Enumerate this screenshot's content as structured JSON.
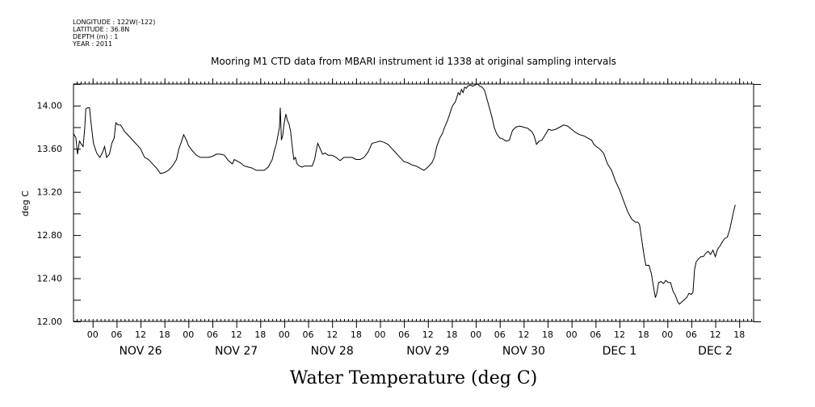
{
  "header": {
    "longitude": "LONGITUDE : 122W(-122)",
    "latitude": "LATITUDE : 36.8N",
    "depth": "DEPTH (m) : 1",
    "year": "YEAR : 2011"
  },
  "chart_data": {
    "type": "line",
    "title": "Mooring M1 CTD data from MBARI instrument id 1338 at original sampling intervals",
    "xlabel": "Water Temperature (deg C)",
    "ylabel": "deg C",
    "ylim": [
      12.0,
      14.2
    ],
    "xlim_hours": [
      -4.8,
      165.6
    ],
    "grid": false,
    "hour_ticks": [
      {
        "label": "00",
        "h": 0
      },
      {
        "label": "06",
        "h": 6
      },
      {
        "label": "12",
        "h": 12
      },
      {
        "label": "18",
        "h": 18
      },
      {
        "label": "00",
        "h": 24
      },
      {
        "label": "06",
        "h": 30
      },
      {
        "label": "12",
        "h": 36
      },
      {
        "label": "18",
        "h": 42
      },
      {
        "label": "00",
        "h": 48
      },
      {
        "label": "06",
        "h": 54
      },
      {
        "label": "12",
        "h": 60
      },
      {
        "label": "18",
        "h": 66
      },
      {
        "label": "00",
        "h": 72
      },
      {
        "label": "06",
        "h": 78
      },
      {
        "label": "12",
        "h": 84
      },
      {
        "label": "18",
        "h": 90
      },
      {
        "label": "00",
        "h": 96
      },
      {
        "label": "06",
        "h": 102
      },
      {
        "label": "12",
        "h": 108
      },
      {
        "label": "18",
        "h": 114
      },
      {
        "label": "00",
        "h": 120
      },
      {
        "label": "06",
        "h": 126
      },
      {
        "label": "12",
        "h": 132
      },
      {
        "label": "18",
        "h": 138
      },
      {
        "label": "00",
        "h": 144
      },
      {
        "label": "06",
        "h": 150
      },
      {
        "label": "12",
        "h": 156
      },
      {
        "label": "18",
        "h": 162
      }
    ],
    "day_labels": [
      {
        "label": "NOV 26",
        "h": 12
      },
      {
        "label": "NOV 27",
        "h": 36
      },
      {
        "label": "NOV 28",
        "h": 60
      },
      {
        "label": "NOV 29",
        "h": 84
      },
      {
        "label": "NOV 30",
        "h": 108
      },
      {
        "label": "DEC  1",
        "h": 132
      },
      {
        "label": "DEC  2",
        "h": 156
      }
    ],
    "y_ticks": [
      {
        "label": "12.00",
        "v": 12.0
      },
      {
        "label": "12.40",
        "v": 12.4
      },
      {
        "label": "12.80",
        "v": 12.8
      },
      {
        "label": "13.20",
        "v": 13.2
      },
      {
        "label": "13.60",
        "v": 13.6
      },
      {
        "label": "14.00",
        "v": 14.0
      }
    ],
    "series": [
      {
        "color": "#000000",
        "points": [
          [
            -4.8,
            13.74
          ],
          [
            -4.2,
            13.7
          ],
          [
            -3.8,
            13.55
          ],
          [
            -3.3,
            13.67
          ],
          [
            -2.8,
            13.64
          ],
          [
            -2.4,
            13.62
          ],
          [
            -2.0,
            13.78
          ],
          [
            -1.7,
            13.97
          ],
          [
            -1.2,
            13.98
          ],
          [
            -0.8,
            13.98
          ],
          [
            -0.4,
            13.84
          ],
          [
            0.2,
            13.65
          ],
          [
            1.0,
            13.56
          ],
          [
            1.8,
            13.52
          ],
          [
            2.4,
            13.56
          ],
          [
            3.0,
            13.62
          ],
          [
            3.5,
            13.52
          ],
          [
            4.2,
            13.55
          ],
          [
            4.8,
            13.65
          ],
          [
            5.4,
            13.7
          ],
          [
            5.8,
            13.84
          ],
          [
            6.4,
            13.82
          ],
          [
            7.0,
            13.82
          ],
          [
            8.0,
            13.76
          ],
          [
            9.0,
            13.72
          ],
          [
            10.0,
            13.68
          ],
          [
            11.0,
            13.64
          ],
          [
            12.0,
            13.6
          ],
          [
            13.0,
            13.52
          ],
          [
            14.0,
            13.5
          ],
          [
            15.0,
            13.46
          ],
          [
            16.0,
            13.42
          ],
          [
            17.0,
            13.37
          ],
          [
            18.0,
            13.38
          ],
          [
            19.0,
            13.4
          ],
          [
            20.0,
            13.44
          ],
          [
            21.0,
            13.5
          ],
          [
            21.6,
            13.6
          ],
          [
            22.2,
            13.66
          ],
          [
            22.8,
            13.73
          ],
          [
            23.5,
            13.68
          ],
          [
            24.0,
            13.63
          ],
          [
            25.0,
            13.58
          ],
          [
            26.0,
            13.54
          ],
          [
            27.0,
            13.52
          ],
          [
            28.0,
            13.52
          ],
          [
            29.0,
            13.52
          ],
          [
            30.0,
            13.53
          ],
          [
            31.0,
            13.55
          ],
          [
            32.0,
            13.55
          ],
          [
            33.0,
            13.54
          ],
          [
            34.0,
            13.49
          ],
          [
            35.0,
            13.46
          ],
          [
            35.5,
            13.5
          ],
          [
            36.0,
            13.49
          ],
          [
            37.0,
            13.47
          ],
          [
            38.0,
            13.44
          ],
          [
            39.0,
            13.43
          ],
          [
            40.0,
            13.42
          ],
          [
            41.0,
            13.4
          ],
          [
            42.0,
            13.4
          ],
          [
            43.0,
            13.4
          ],
          [
            44.0,
            13.43
          ],
          [
            45.0,
            13.5
          ],
          [
            45.5,
            13.58
          ],
          [
            46.0,
            13.64
          ],
          [
            46.4,
            13.72
          ],
          [
            46.8,
            13.8
          ],
          [
            47.0,
            13.98
          ],
          [
            47.3,
            13.68
          ],
          [
            47.6,
            13.72
          ],
          [
            48.0,
            13.84
          ],
          [
            48.4,
            13.92
          ],
          [
            48.8,
            13.86
          ],
          [
            49.2,
            13.83
          ],
          [
            49.6,
            13.76
          ],
          [
            50.0,
            13.62
          ],
          [
            50.4,
            13.5
          ],
          [
            50.8,
            13.52
          ],
          [
            51.2,
            13.46
          ],
          [
            51.8,
            13.44
          ],
          [
            52.5,
            13.43
          ],
          [
            53.0,
            13.44
          ],
          [
            54.0,
            13.44
          ],
          [
            55.0,
            13.44
          ],
          [
            55.6,
            13.5
          ],
          [
            56.0,
            13.58
          ],
          [
            56.4,
            13.65
          ],
          [
            57.0,
            13.6
          ],
          [
            57.6,
            13.55
          ],
          [
            58.2,
            13.56
          ],
          [
            59.0,
            13.54
          ],
          [
            60.0,
            13.54
          ],
          [
            61.0,
            13.52
          ],
          [
            62.0,
            13.49
          ],
          [
            63.0,
            13.52
          ],
          [
            64.0,
            13.52
          ],
          [
            65.0,
            13.52
          ],
          [
            66.0,
            13.5
          ],
          [
            67.0,
            13.5
          ],
          [
            68.0,
            13.52
          ],
          [
            69.0,
            13.57
          ],
          [
            70.0,
            13.65
          ],
          [
            71.0,
            13.66
          ],
          [
            72.0,
            13.67
          ],
          [
            73.0,
            13.66
          ],
          [
            74.0,
            13.64
          ],
          [
            75.0,
            13.6
          ],
          [
            76.0,
            13.56
          ],
          [
            77.0,
            13.52
          ],
          [
            78.0,
            13.48
          ],
          [
            79.0,
            13.47
          ],
          [
            80.0,
            13.45
          ],
          [
            81.0,
            13.44
          ],
          [
            82.0,
            13.42
          ],
          [
            83.0,
            13.4
          ],
          [
            84.0,
            13.43
          ],
          [
            85.0,
            13.47
          ],
          [
            85.6,
            13.52
          ],
          [
            86.2,
            13.62
          ],
          [
            87.0,
            13.7
          ],
          [
            87.6,
            13.74
          ],
          [
            88.2,
            13.8
          ],
          [
            89.0,
            13.87
          ],
          [
            89.6,
            13.94
          ],
          [
            90.2,
            14.0
          ],
          [
            90.8,
            14.03
          ],
          [
            91.2,
            14.07
          ],
          [
            91.6,
            14.12
          ],
          [
            92.0,
            14.1
          ],
          [
            92.4,
            14.15
          ],
          [
            92.8,
            14.12
          ],
          [
            93.2,
            14.17
          ],
          [
            93.6,
            14.16
          ],
          [
            94.0,
            14.18
          ],
          [
            94.6,
            14.19
          ],
          [
            95.2,
            14.18
          ],
          [
            95.8,
            14.19
          ],
          [
            96.4,
            14.2
          ],
          [
            97.0,
            14.18
          ],
          [
            97.6,
            14.17
          ],
          [
            98.2,
            14.14
          ],
          [
            98.8,
            14.06
          ],
          [
            99.4,
            13.98
          ],
          [
            100.0,
            13.9
          ],
          [
            100.6,
            13.8
          ],
          [
            101.2,
            13.74
          ],
          [
            102.0,
            13.7
          ],
          [
            102.8,
            13.69
          ],
          [
            103.6,
            13.67
          ],
          [
            104.4,
            13.68
          ],
          [
            105.2,
            13.77
          ],
          [
            106.0,
            13.8
          ],
          [
            107.0,
            13.81
          ],
          [
            108.0,
            13.8
          ],
          [
            109.0,
            13.79
          ],
          [
            110.0,
            13.76
          ],
          [
            110.6,
            13.72
          ],
          [
            111.2,
            13.64
          ],
          [
            111.8,
            13.67
          ],
          [
            112.6,
            13.68
          ],
          [
            113.4,
            13.73
          ],
          [
            114.2,
            13.78
          ],
          [
            115.0,
            13.77
          ],
          [
            116.0,
            13.78
          ],
          [
            117.0,
            13.8
          ],
          [
            118.0,
            13.82
          ],
          [
            119.0,
            13.81
          ],
          [
            120.0,
            13.78
          ],
          [
            121.0,
            13.75
          ],
          [
            122.0,
            13.73
          ],
          [
            123.0,
            13.72
          ],
          [
            124.0,
            13.7
          ],
          [
            125.0,
            13.68
          ],
          [
            125.6,
            13.64
          ],
          [
            126.2,
            13.62
          ],
          [
            127.0,
            13.6
          ],
          [
            128.0,
            13.56
          ],
          [
            129.0,
            13.46
          ],
          [
            130.0,
            13.4
          ],
          [
            131.0,
            13.3
          ],
          [
            132.0,
            13.22
          ],
          [
            133.0,
            13.12
          ],
          [
            134.0,
            13.02
          ],
          [
            135.0,
            12.95
          ],
          [
            136.0,
            12.92
          ],
          [
            136.6,
            12.92
          ],
          [
            137.0,
            12.9
          ],
          [
            137.4,
            12.8
          ],
          [
            137.8,
            12.7
          ],
          [
            138.2,
            12.6
          ],
          [
            138.6,
            12.52
          ],
          [
            139.4,
            12.52
          ],
          [
            140.0,
            12.44
          ],
          [
            140.6,
            12.3
          ],
          [
            141.0,
            12.22
          ],
          [
            141.4,
            12.27
          ],
          [
            141.8,
            12.36
          ],
          [
            142.4,
            12.37
          ],
          [
            143.0,
            12.35
          ],
          [
            143.6,
            12.38
          ],
          [
            144.2,
            12.36
          ],
          [
            144.8,
            12.36
          ],
          [
            145.4,
            12.28
          ],
          [
            146.0,
            12.24
          ],
          [
            146.6,
            12.18
          ],
          [
            147.0,
            12.16
          ],
          [
            147.6,
            12.18
          ],
          [
            148.2,
            12.2
          ],
          [
            148.8,
            12.22
          ],
          [
            149.4,
            12.26
          ],
          [
            150.0,
            12.25
          ],
          [
            150.4,
            12.27
          ],
          [
            150.8,
            12.48
          ],
          [
            151.2,
            12.55
          ],
          [
            151.8,
            12.58
          ],
          [
            152.4,
            12.6
          ],
          [
            153.0,
            12.6
          ],
          [
            153.6,
            12.63
          ],
          [
            154.2,
            12.65
          ],
          [
            154.8,
            12.62
          ],
          [
            155.4,
            12.66
          ],
          [
            156.0,
            12.6
          ],
          [
            156.6,
            12.67
          ],
          [
            157.2,
            12.7
          ],
          [
            157.8,
            12.74
          ],
          [
            158.4,
            12.77
          ],
          [
            159.0,
            12.78
          ],
          [
            159.6,
            12.85
          ],
          [
            160.2,
            12.95
          ],
          [
            160.6,
            13.02
          ],
          [
            161.0,
            13.08
          ]
        ]
      }
    ]
  }
}
